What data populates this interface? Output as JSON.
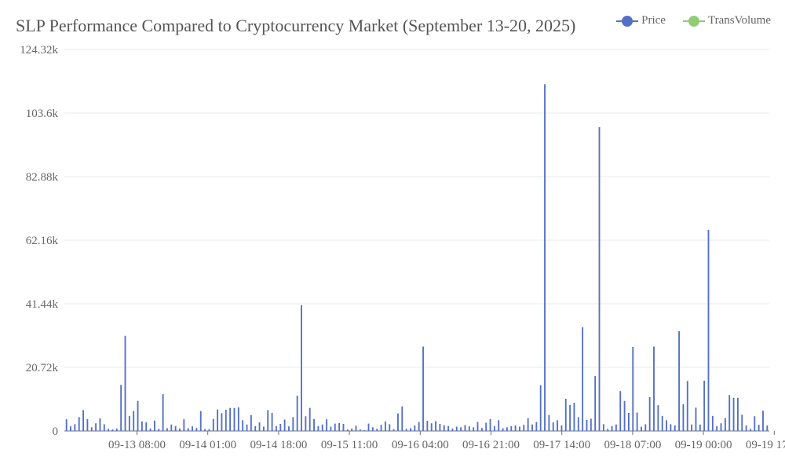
{
  "chart_data": {
    "type": "bar",
    "title": "SLP Performance Compared to Cryptocurrency Market (September 13-20, 2025)",
    "xlabel": "",
    "ylabel": "",
    "ylim": [
      0,
      124320
    ],
    "y_ticks": [
      "0",
      "20.72k",
      "41.44k",
      "62.16k",
      "82.88k",
      "103.6k",
      "124.32k"
    ],
    "y_tick_values": [
      0,
      20720,
      41440,
      62160,
      82880,
      103600,
      124320
    ],
    "x_tick_labels": [
      "09-13 08:00",
      "09-14 01:00",
      "09-14 18:00",
      "09-15 11:00",
      "09-16 04:00",
      "09-16 21:00",
      "09-17 14:00",
      "09-18 07:00",
      "09-19 00:00",
      "09-19 17:00"
    ],
    "grid": true,
    "legend_position": "top-right",
    "legend": [
      {
        "name": "Price",
        "color": "#5470c6"
      },
      {
        "name": "TransVolume",
        "color": "#91cc75"
      }
    ],
    "series": [
      {
        "name": "Price",
        "color": "#5470c6",
        "values": [
          3800,
          1500,
          2200,
          4500,
          6800,
          3900,
          1200,
          2500,
          4100,
          2200,
          700,
          500,
          800,
          15000,
          31000,
          4900,
          6500,
          9800,
          3100,
          2800,
          800,
          3400,
          700,
          12000,
          900,
          2100,
          1600,
          800,
          3800,
          900,
          1500,
          1000,
          6500,
          600,
          600,
          3900,
          7000,
          5800,
          6900,
          7500,
          7500,
          7700,
          3500,
          2100,
          5200,
          1600,
          2800,
          1400,
          6800,
          5900,
          1600,
          2300,
          3700,
          1500,
          4500,
          11500,
          41000,
          4800,
          7500,
          3900,
          1600,
          2100,
          3800,
          1400,
          2400,
          2600,
          2300,
          500,
          800,
          1700,
          500,
          300,
          2400,
          1200,
          700,
          2000,
          3100,
          2200,
          600,
          5700,
          8000,
          700,
          900,
          1800,
          2900,
          27500,
          3300,
          2500,
          3200,
          2300,
          1900,
          1600,
          800,
          1400,
          1200,
          1900,
          1500,
          1200,
          2900,
          1000,
          2700,
          3900,
          1600,
          3500,
          900,
          1200,
          1600,
          1800,
          1400,
          2000,
          4200,
          2100,
          2900,
          14900,
          113000,
          5200,
          2800,
          3500,
          1800,
          10500,
          8500,
          9200,
          4500,
          33800,
          3600,
          4000,
          17900,
          99000,
          2200,
          700,
          1600,
          2100,
          13000,
          9800,
          5900,
          27400,
          6000,
          1400,
          2200,
          11000,
          27500,
          8400,
          4900,
          3500,
          2200,
          1800,
          32500,
          8700,
          16300,
          2100,
          7600,
          2100,
          16400,
          65500,
          4900,
          1600,
          2500,
          4200,
          11700,
          10800,
          10800,
          5300,
          1800,
          700,
          4800,
          2000,
          6600,
          1800
        ]
      }
    ]
  }
}
